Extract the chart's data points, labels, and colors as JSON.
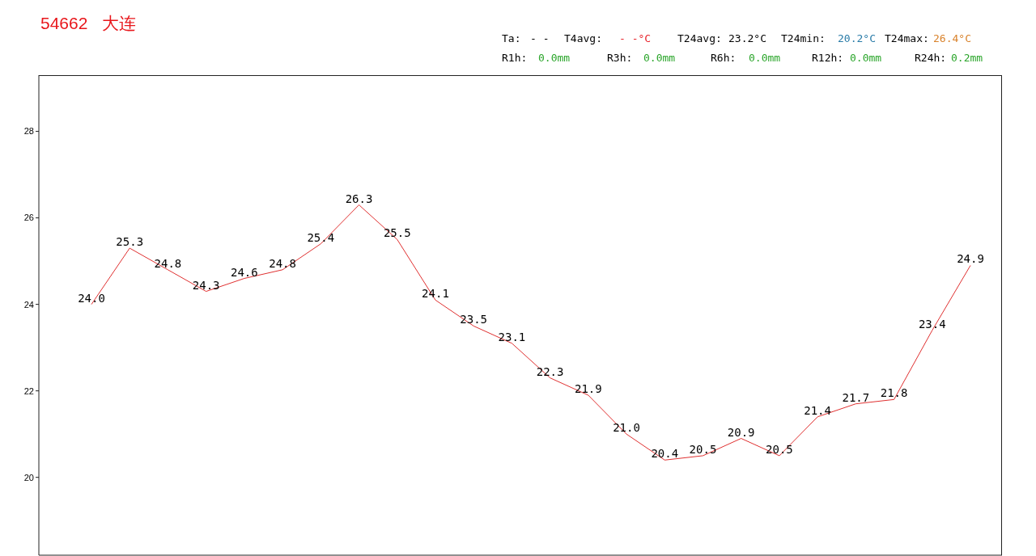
{
  "chart_data": {
    "type": "line",
    "title": "54662   大连",
    "annotations": [
      "Ta:",
      "- -",
      "T4avg:",
      "- -°C",
      "T24avg:",
      "23.2°C",
      "T24min:",
      "20.2°C",
      "T24max:",
      "26.4°C",
      "R1h:",
      "0.0mm",
      "R3h:",
      "0.0mm",
      "R6h:",
      "0.0mm",
      "R12h:",
      "0.0mm",
      "R24h:",
      "0.2mm"
    ],
    "categories": [
      null,
      null,
      null,
      null,
      null,
      null,
      null,
      null,
      null,
      null,
      null,
      null,
      null,
      null,
      null,
      null,
      null,
      null,
      null,
      null,
      null,
      null,
      null,
      null
    ],
    "series": [
      {
        "color": "#e03030",
        "values": [
          24.0,
          25.3,
          24.8,
          24.3,
          24.6,
          24.8,
          25.4,
          26.3,
          25.5,
          24.1,
          23.5,
          23.1,
          22.3,
          21.9,
          21.0,
          20.4,
          20.5,
          20.9,
          20.5,
          21.4,
          21.7,
          21.8,
          23.4,
          24.9
        ],
        "value_labels": [
          "24.0",
          "25.3",
          "24.8",
          "24.3",
          "24.6",
          "24.8",
          "25.4",
          "26.3",
          "25.5",
          "24.1",
          "23.5",
          "23.1",
          "22.3",
          "21.9",
          "21.0",
          "20.4",
          "20.5",
          "20.9",
          "20.5",
          "21.4",
          "21.7",
          "21.8",
          "23.4",
          "24.9"
        ]
      }
    ],
    "ylim": [
      18.2,
      29.3
    ],
    "yticks": [
      20,
      22,
      24,
      26,
      28
    ],
    "marker": "none",
    "line_style": "solid",
    "tick_labels": "y"
  }
}
